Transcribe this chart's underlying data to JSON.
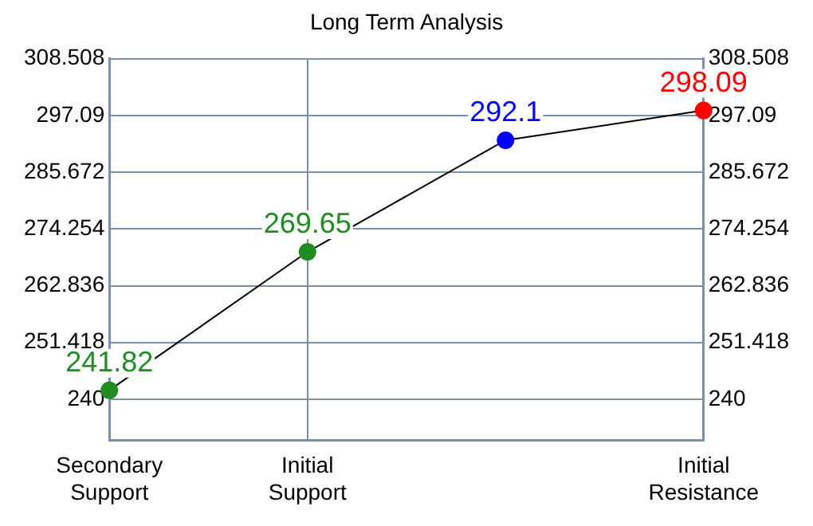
{
  "chart_data": {
    "type": "line",
    "title": "Long Term Analysis",
    "categories": [
      "Secondary Support",
      "Initial Support",
      null,
      "Initial Resistance"
    ],
    "series": [
      {
        "color": "#000000",
        "colors": [
          "#228b22",
          "#228b22",
          "#0000ff",
          "#ff0000"
        ],
        "values": [
          241.82,
          269.65,
          292.1,
          298.09
        ]
      }
    ],
    "ylim": [
      231.7,
      308.508
    ],
    "yticks": [
      240,
      251.418,
      262.836,
      274.254,
      285.672,
      297.09,
      308.508
    ],
    "y2lim": [
      231.7,
      308.508
    ],
    "y2ticks": [
      240,
      251.418,
      262.836,
      274.254,
      285.672,
      297.09,
      308.508
    ],
    "data_labels": true,
    "grid": true,
    "marker": "circle",
    "line_style": "solid"
  }
}
